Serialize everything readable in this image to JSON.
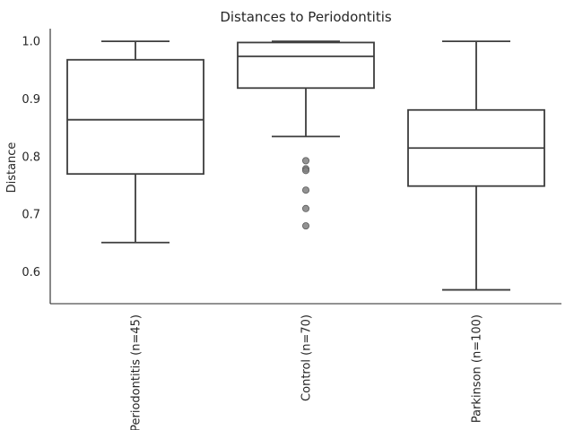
{
  "chart_data": {
    "type": "box",
    "title": "Distances to Periodontitis",
    "xlabel": "",
    "ylabel": "Distance",
    "ylim": [
      0.545,
      1.022
    ],
    "yticks": [
      0.6,
      0.7,
      0.8,
      0.9,
      1.0
    ],
    "ytick_labels": [
      "0.6",
      "0.7",
      "0.8",
      "0.9",
      "1.0"
    ],
    "grid": false,
    "legend": "none",
    "categories": [
      "Periodontitis (n=45)",
      "Control (n=70)",
      "Parkinson (n=100)"
    ],
    "boxes": [
      {
        "category": "Periodontitis (n=45)",
        "whisker_low": 0.651,
        "q1": 0.77,
        "median": 0.864,
        "q3": 0.968,
        "whisker_high": 1.0,
        "outliers": []
      },
      {
        "category": "Control (n=70)",
        "whisker_low": 0.835,
        "q1": 0.919,
        "median": 0.974,
        "q3": 0.998,
        "whisker_high": 1.0,
        "outliers": [
          0.793,
          0.779,
          0.776,
          0.742,
          0.71,
          0.68
        ]
      },
      {
        "category": "Parkinson (n=100)",
        "whisker_low": 0.569,
        "q1": 0.749,
        "median": 0.815,
        "q3": 0.881,
        "whisker_high": 1.0,
        "outliers": []
      }
    ],
    "colors": {
      "box_edge": "#3d3d3d",
      "box_fill": "#ffffff",
      "outlier_fill": "#7f7f7f",
      "axis": "#262626"
    }
  }
}
